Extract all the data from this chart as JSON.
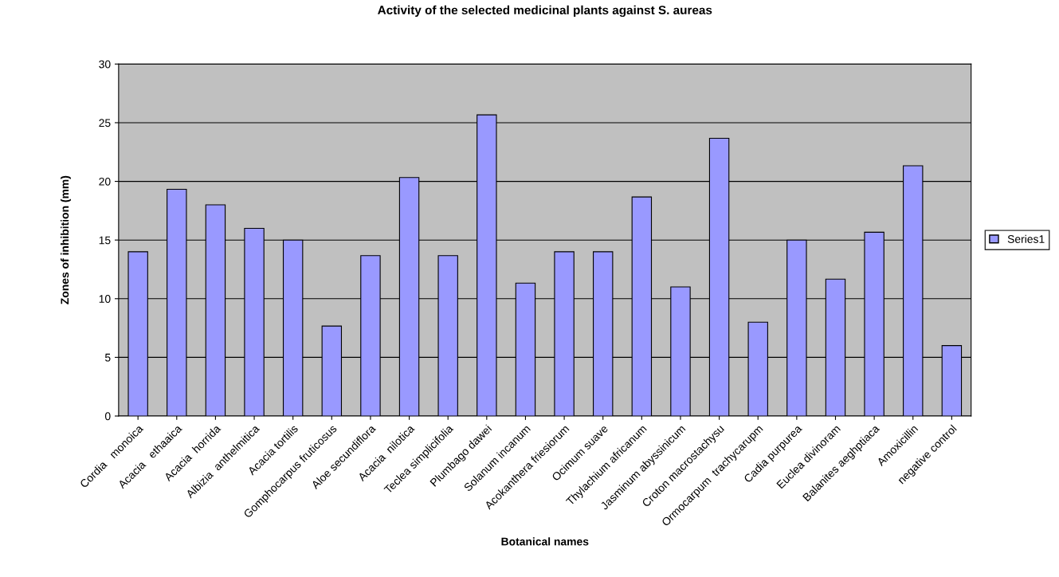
{
  "chart_data": {
    "type": "bar",
    "title": "Activity of the selected medicinal plants against S. aureas",
    "xlabel": "Botanical names",
    "ylabel": "Zones of inhibition (mm)",
    "categories": [
      "Cordia   monoica",
      "Acacia   ethaaica",
      "Acacia  horrida",
      "Albizia  anthelmitica",
      "Acacia tortilis",
      "Gomphocarpus fruticosus",
      "Aloe secundiflora",
      "Acacia  nilotica",
      "Teclea simplicifolia",
      "Plumbago dawei",
      "Solanum incanum",
      "Acokanthera friesiorum",
      "Ocimum suave",
      "Thylachium africanum",
      "Jasminum abyssinicum",
      "Croton macrostachysu",
      "Ormocarpum  trachycarupm",
      "Cadia purpurea",
      "Euclea divinoram",
      "Balanites aeghptiaca",
      "Amoxicillin",
      "negative control"
    ],
    "series": [
      {
        "name": "Series1",
        "color": "#9999ff",
        "values": [
          14,
          19.33,
          18,
          16,
          15,
          7.67,
          13.67,
          20.33,
          13.67,
          25.67,
          11.33,
          14,
          14,
          18.67,
          11,
          23.67,
          8,
          15,
          11.67,
          15.67,
          21.33,
          6
        ]
      }
    ],
    "ylim": [
      0,
      30
    ],
    "yticks": [
      0,
      5,
      10,
      15,
      20,
      25,
      30
    ],
    "grid": "y",
    "legend": "right"
  }
}
